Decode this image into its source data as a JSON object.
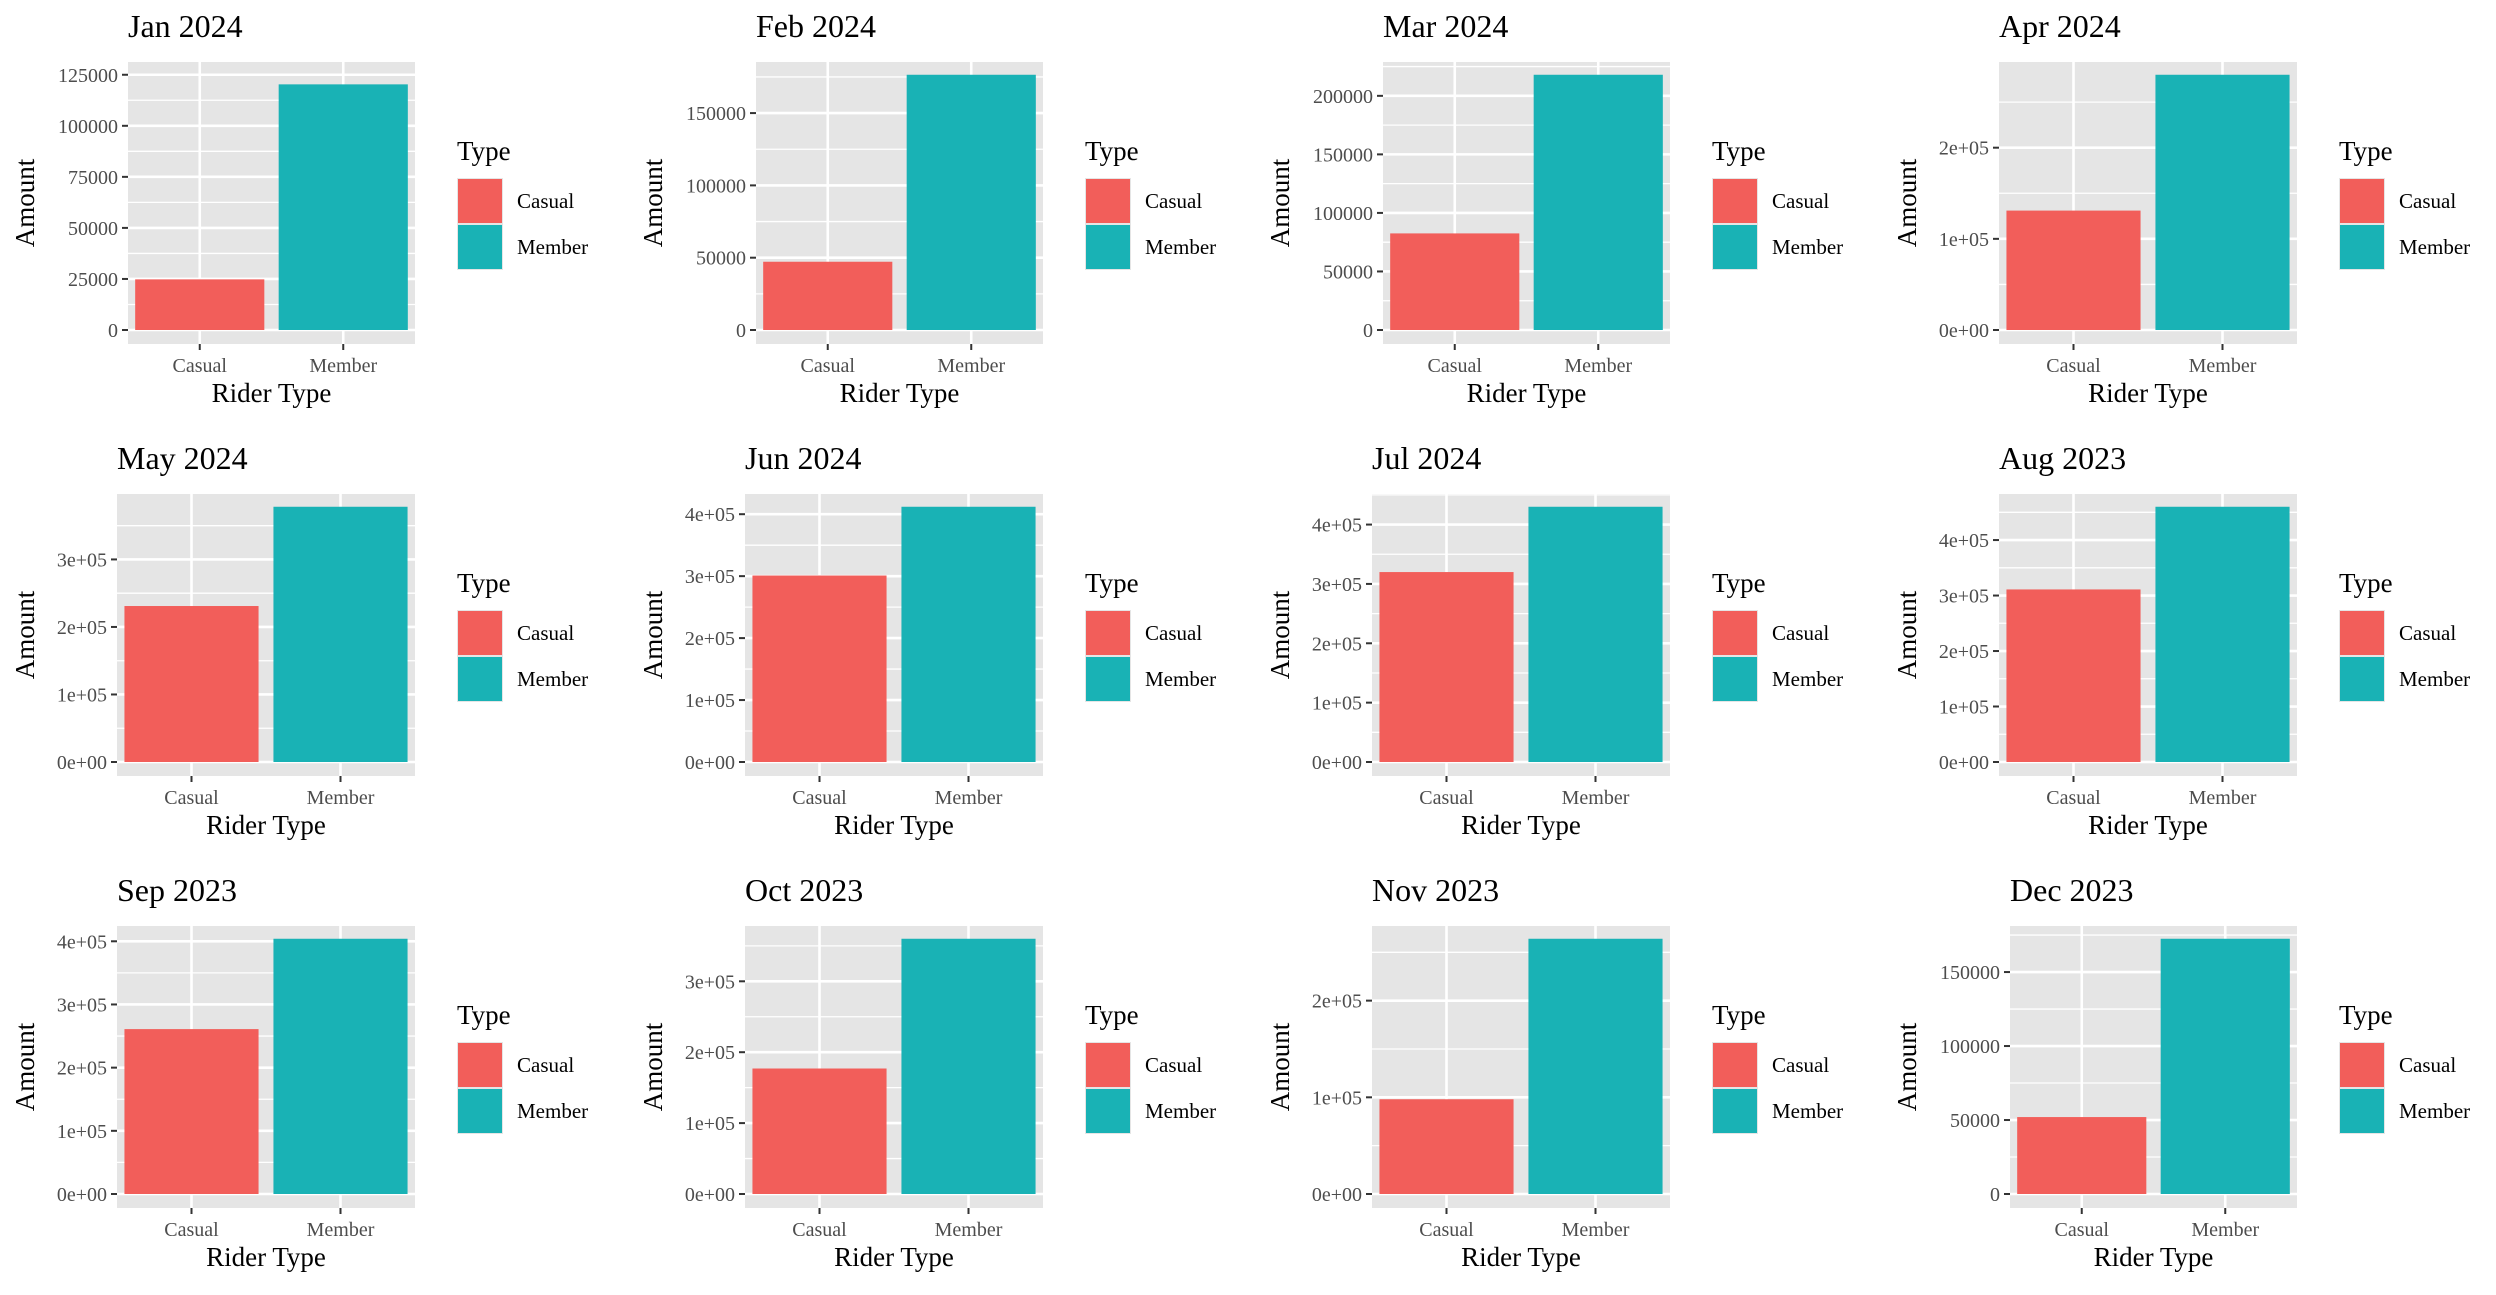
{
  "figure": {
    "x_axis_label": "Rider Type",
    "y_axis_label": "Amount",
    "legend_title": "Type",
    "legend_placement": "right"
  },
  "colors": {
    "Casual": "#F25E5A",
    "Member": "#19B2B5",
    "panel_bg": "#E5E5E5",
    "grid": "#FFFFFF",
    "text": "#000000",
    "tick_text": "#4D4D4D"
  },
  "chart_data": [
    {
      "type": "bar",
      "title": "Jan 2024",
      "xlabel": "Rider Type",
      "ylabel": "Amount",
      "categories": [
        "Casual",
        "Member"
      ],
      "values": [
        24800,
        120300
      ],
      "ylim": [
        0,
        125000
      ],
      "yticks": [
        0,
        25000,
        50000,
        75000,
        100000,
        125000
      ],
      "ytick_labels": [
        "0",
        "25000",
        "50000",
        "75000",
        "100000",
        "125000"
      ],
      "legend": [
        "Casual",
        "Member"
      ],
      "grid": true
    },
    {
      "type": "bar",
      "title": "Feb 2024",
      "xlabel": "Rider Type",
      "ylabel": "Amount",
      "categories": [
        "Casual",
        "Member"
      ],
      "values": [
        47200,
        176500
      ],
      "ylim": [
        0,
        176500
      ],
      "yticks": [
        0,
        50000,
        100000,
        150000
      ],
      "ytick_labels": [
        "0",
        "50000",
        "100000",
        "150000"
      ],
      "legend": [
        "Casual",
        "Member"
      ],
      "grid": true
    },
    {
      "type": "bar",
      "title": "Mar 2024",
      "xlabel": "Rider Type",
      "ylabel": "Amount",
      "categories": [
        "Casual",
        "Member"
      ],
      "values": [
        82500,
        218000
      ],
      "ylim": [
        0,
        218000
      ],
      "yticks": [
        0,
        50000,
        100000,
        150000,
        200000
      ],
      "ytick_labels": [
        "0",
        "50000",
        "100000",
        "150000",
        "200000"
      ],
      "legend": [
        "Casual",
        "Member"
      ],
      "grid": true
    },
    {
      "type": "bar",
      "title": "Apr 2024",
      "xlabel": "Rider Type",
      "ylabel": "Amount",
      "categories": [
        "Casual",
        "Member"
      ],
      "values": [
        131000,
        280000
      ],
      "ylim": [
        0,
        280000
      ],
      "yticks": [
        0,
        100000,
        200000
      ],
      "ytick_labels": [
        "0e+00",
        "1e+05",
        "2e+05"
      ],
      "legend": [
        "Casual",
        "Member"
      ],
      "grid": true
    },
    {
      "type": "bar",
      "title": "May 2024",
      "xlabel": "Rider Type",
      "ylabel": "Amount",
      "categories": [
        "Casual",
        "Member"
      ],
      "values": [
        231000,
        378000
      ],
      "ylim": [
        0,
        378000
      ],
      "yticks": [
        0,
        100000,
        200000,
        300000
      ],
      "ytick_labels": [
        "0e+00",
        "1e+05",
        "2e+05",
        "3e+05"
      ],
      "legend": [
        "Casual",
        "Member"
      ],
      "grid": true
    },
    {
      "type": "bar",
      "title": "Jun 2024",
      "xlabel": "Rider Type",
      "ylabel": "Amount",
      "categories": [
        "Casual",
        "Member"
      ],
      "values": [
        301000,
        412000
      ],
      "ylim": [
        0,
        412000
      ],
      "yticks": [
        0,
        100000,
        200000,
        300000,
        400000
      ],
      "ytick_labels": [
        "0e+00",
        "1e+05",
        "2e+05",
        "3e+05",
        "4e+05"
      ],
      "legend": [
        "Casual",
        "Member"
      ],
      "grid": true
    },
    {
      "type": "bar",
      "title": "Jul 2024",
      "xlabel": "Rider Type",
      "ylabel": "Amount",
      "categories": [
        "Casual",
        "Member"
      ],
      "values": [
        320000,
        430000
      ],
      "ylim": [
        0,
        430000
      ],
      "yticks": [
        0,
        100000,
        200000,
        300000,
        400000
      ],
      "ytick_labels": [
        "0e+00",
        "1e+05",
        "2e+05",
        "3e+05",
        "4e+05"
      ],
      "legend": [
        "Casual",
        "Member"
      ],
      "grid": true
    },
    {
      "type": "bar",
      "title": "Aug 2023",
      "xlabel": "Rider Type",
      "ylabel": "Amount",
      "categories": [
        "Casual",
        "Member"
      ],
      "values": [
        311000,
        460000
      ],
      "ylim": [
        0,
        460000
      ],
      "yticks": [
        0,
        100000,
        200000,
        300000,
        400000
      ],
      "ytick_labels": [
        "0e+00",
        "1e+05",
        "2e+05",
        "3e+05",
        "4e+05"
      ],
      "legend": [
        "Casual",
        "Member"
      ],
      "grid": true
    },
    {
      "type": "bar",
      "title": "Sep 2023",
      "xlabel": "Rider Type",
      "ylabel": "Amount",
      "categories": [
        "Casual",
        "Member"
      ],
      "values": [
        261000,
        404000
      ],
      "ylim": [
        0,
        404000
      ],
      "yticks": [
        0,
        100000,
        200000,
        300000,
        400000
      ],
      "ytick_labels": [
        "0e+00",
        "1e+05",
        "2e+05",
        "3e+05",
        "4e+05"
      ],
      "legend": [
        "Casual",
        "Member"
      ],
      "grid": true
    },
    {
      "type": "bar",
      "title": "Oct 2023",
      "xlabel": "Rider Type",
      "ylabel": "Amount",
      "categories": [
        "Casual",
        "Member"
      ],
      "values": [
        177000,
        360000
      ],
      "ylim": [
        0,
        360000
      ],
      "yticks": [
        0,
        100000,
        200000,
        300000
      ],
      "ytick_labels": [
        "0e+00",
        "1e+05",
        "2e+05",
        "3e+05"
      ],
      "legend": [
        "Casual",
        "Member"
      ],
      "grid": true
    },
    {
      "type": "bar",
      "title": "Nov 2023",
      "xlabel": "Rider Type",
      "ylabel": "Amount",
      "categories": [
        "Casual",
        "Member"
      ],
      "values": [
        98000,
        264000
      ],
      "ylim": [
        0,
        264000
      ],
      "yticks": [
        0,
        100000,
        200000
      ],
      "ytick_labels": [
        "0e+00",
        "1e+05",
        "2e+05"
      ],
      "legend": [
        "Casual",
        "Member"
      ],
      "grid": true
    },
    {
      "type": "bar",
      "title": "Dec 2023",
      "xlabel": "Rider Type",
      "ylabel": "Amount",
      "categories": [
        "Casual",
        "Member"
      ],
      "values": [
        52000,
        172500
      ],
      "ylim": [
        0,
        172500
      ],
      "yticks": [
        0,
        50000,
        100000,
        150000
      ],
      "ytick_labels": [
        "0",
        "50000",
        "100000",
        "150000"
      ],
      "legend": [
        "Casual",
        "Member"
      ],
      "grid": true
    }
  ]
}
